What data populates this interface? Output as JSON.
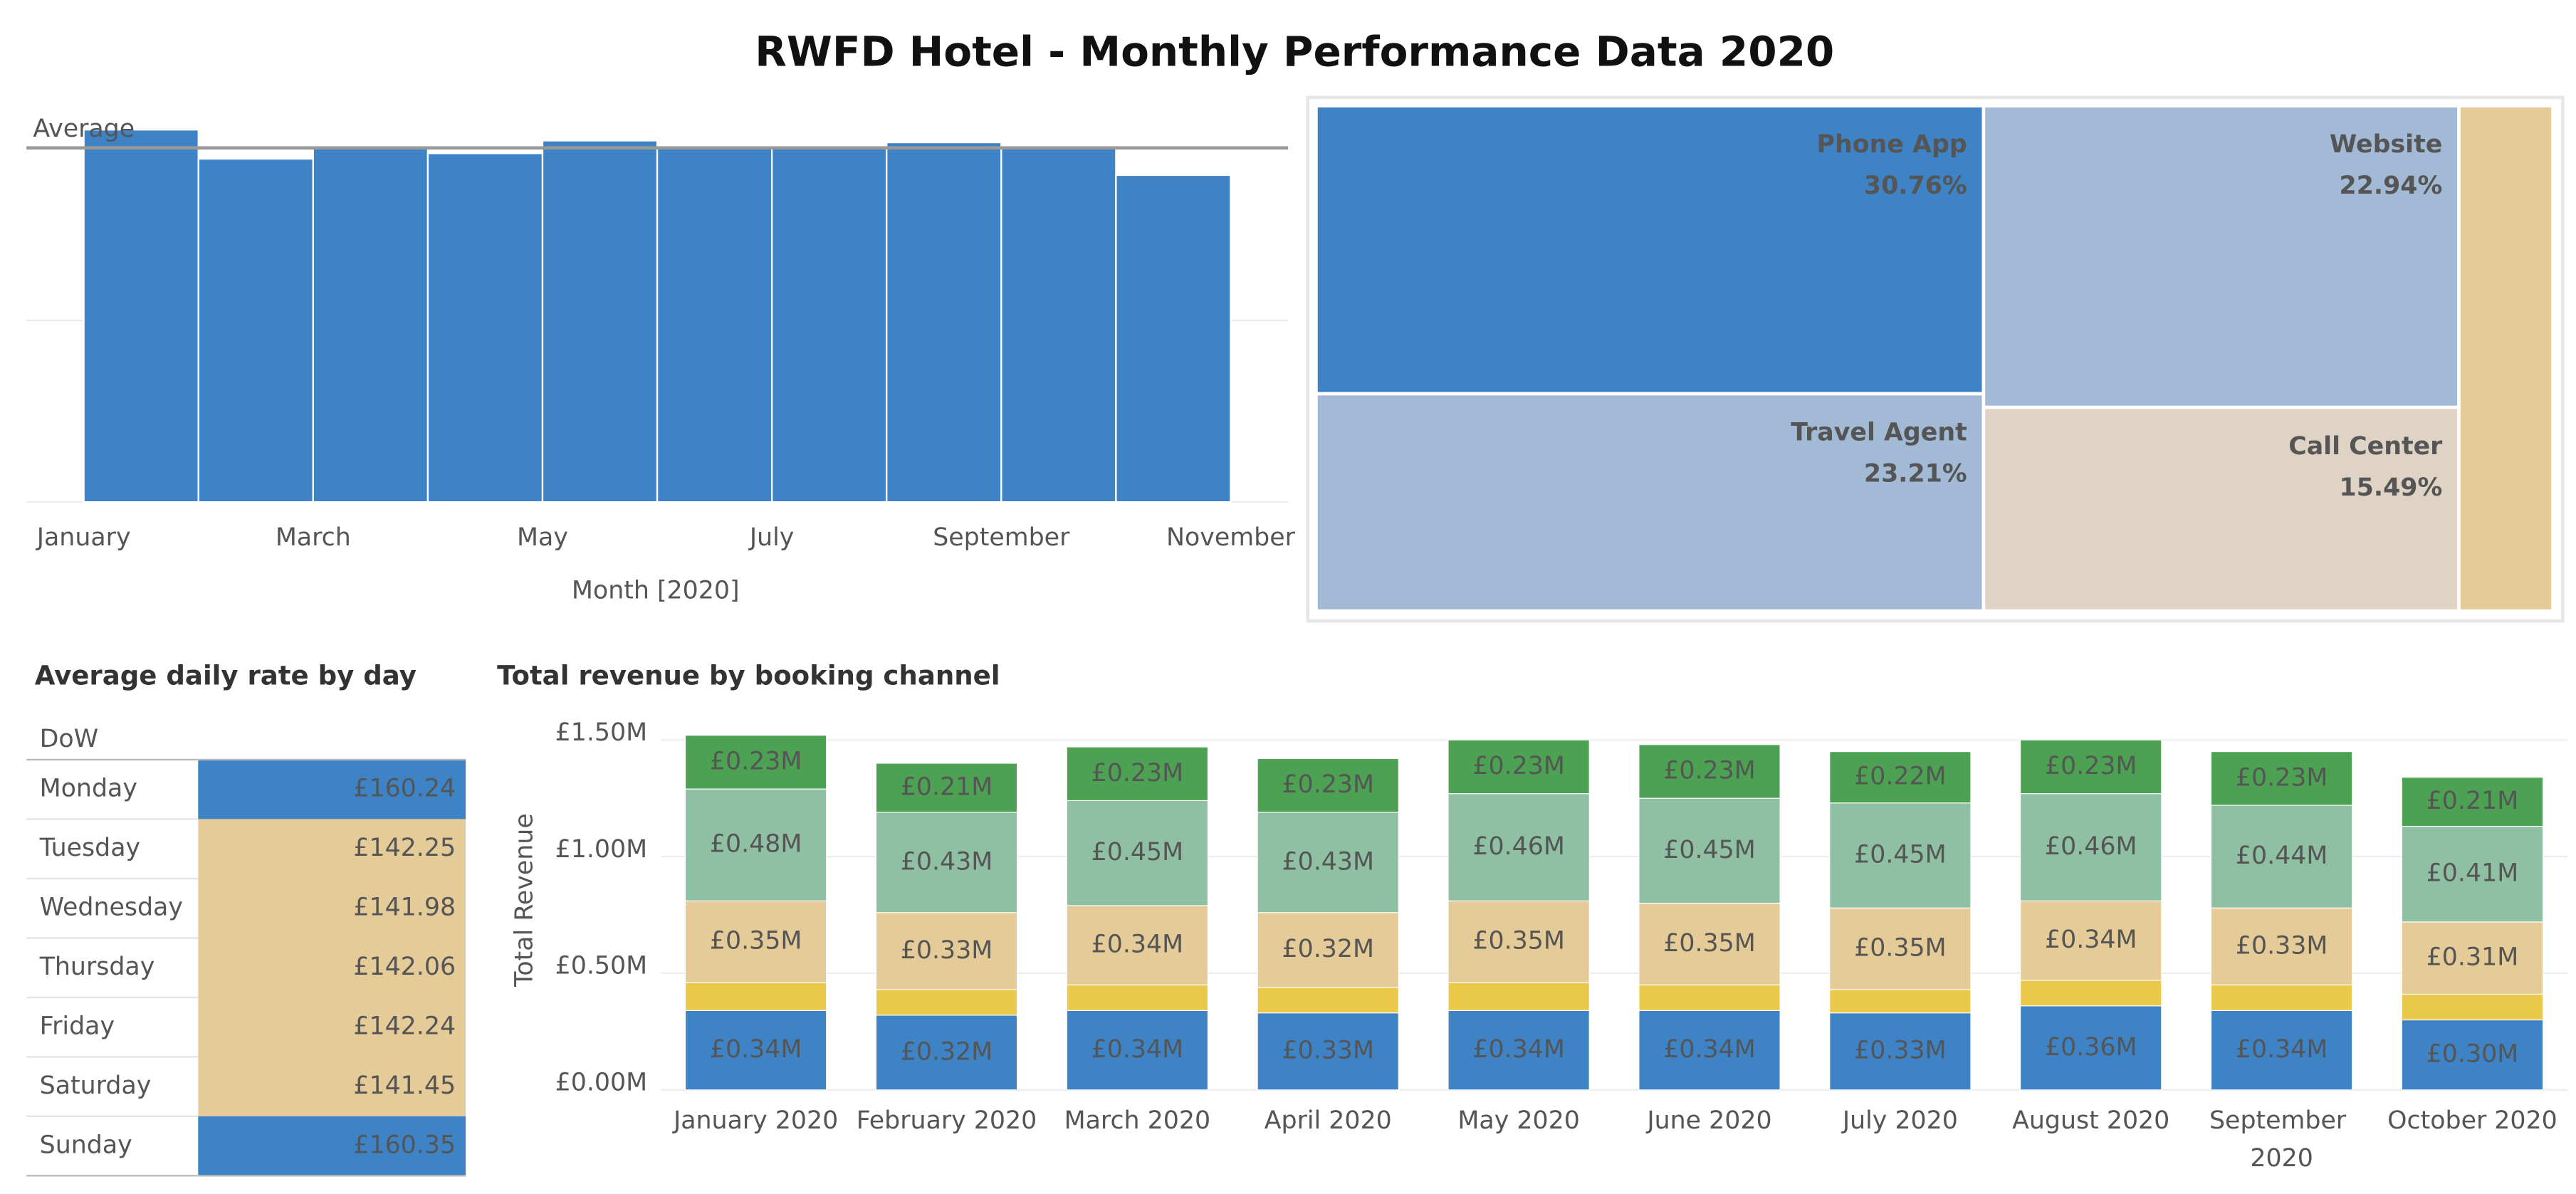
{
  "title": "RWFD Hotel - Monthly Performance Data 2020",
  "chart_data": [
    {
      "type": "bar",
      "x": [
        1,
        2,
        3,
        4,
        5,
        6,
        7,
        8,
        9,
        10
      ],
      "values": [
        2.05,
        1.89,
        1.96,
        1.92,
        1.99,
        1.96,
        1.96,
        1.98,
        1.95,
        1.8
      ],
      "color": "#3d83c6",
      "xlim": [
        0.5,
        11.5
      ],
      "xticks": [
        {
          "value": 1,
          "label": "January"
        },
        {
          "value": 3,
          "label": "March"
        },
        {
          "value": 5,
          "label": "May"
        },
        {
          "value": 7,
          "label": "July"
        },
        {
          "value": 9,
          "label": "September"
        },
        {
          "value": 11,
          "label": "November"
        }
      ],
      "ylim": [
        0,
        2.2
      ],
      "yticks": [
        0,
        1
      ],
      "grid": true,
      "xlabel": "Month [2020]",
      "reference_line": {
        "label": "Average",
        "value": 1.95
      }
    },
    {
      "type": "treemap",
      "categories": [
        "Phone App",
        "Travel Agent",
        "Website",
        "Call Center",
        null
      ],
      "values": [
        30.76,
        23.21,
        22.94,
        15.49,
        7.6
      ],
      "value_labels": [
        "30.76%",
        "23.21%",
        "22.94%",
        "15.49%",
        null
      ],
      "colors": [
        "#3d83c6",
        "#a2bad5",
        "#a2bad5",
        "#ded3c4",
        "#e4cb98"
      ]
    },
    {
      "type": "table",
      "title": "Average daily rate by day",
      "header": "DoW",
      "categories": [
        "Monday",
        "Tuesday",
        "Wednesday",
        "Thursday",
        "Friday",
        "Saturday",
        "Sunday"
      ],
      "values": [
        160.24,
        142.25,
        141.98,
        142.06,
        142.24,
        141.45,
        160.35
      ],
      "value_labels": [
        "£160.24",
        "£142.25",
        "£141.98",
        "£142.06",
        "£142.24",
        "£141.45",
        "£160.35"
      ],
      "colors": [
        "#3d83c6",
        "#e4cb98",
        "#e4cb98",
        "#e4cb98",
        "#e4cb98",
        "#e4cb98",
        "#3d83c6"
      ]
    },
    {
      "type": "stacked_bar",
      "title": "Total revenue by booking channel",
      "ylabel": "Total Revenue",
      "categories": [
        "January 2020",
        "February 2020",
        "March 2020",
        "April 2020",
        "May 2020",
        "June 2020",
        "July 2020",
        "August 2020",
        "September 2020",
        "October 2020"
      ],
      "ylim": [
        0,
        1.55
      ],
      "yticks": [
        {
          "value": 0,
          "label": "£0.00M"
        },
        {
          "value": 0.5,
          "label": "£0.50M"
        },
        {
          "value": 1,
          "label": "£1.00M"
        },
        {
          "value": 1.5,
          "label": "£1.50M"
        }
      ],
      "grid": true,
      "series": [
        {
          "color": "#3d83c6",
          "label_color": "#a9cdf0",
          "values": [
            0.34,
            0.32,
            0.34,
            0.33,
            0.34,
            0.34,
            0.33,
            0.36,
            0.34,
            0.3
          ],
          "value_labels": [
            "£0.34M",
            "£0.32M",
            "£0.34M",
            "£0.33M",
            "£0.34M",
            "£0.34M",
            "£0.33M",
            "£0.36M",
            "£0.34M",
            "£0.30M"
          ]
        },
        {
          "color": "#e9c84a",
          "values": [
            0.12,
            0.11,
            0.11,
            0.11,
            0.12,
            0.11,
            0.1,
            0.11,
            0.11,
            0.11
          ]
        },
        {
          "color": "#e4cb98",
          "label_color": "#b09a70",
          "values": [
            0.35,
            0.33,
            0.34,
            0.32,
            0.35,
            0.35,
            0.35,
            0.34,
            0.33,
            0.31
          ],
          "value_labels": [
            "£0.35M",
            "£0.33M",
            "£0.34M",
            "£0.32M",
            "£0.35M",
            "£0.35M",
            "£0.35M",
            "£0.34M",
            "£0.33M",
            "£0.31M"
          ]
        },
        {
          "color": "#8fc0a4",
          "label_color": "#5f8a72",
          "values": [
            0.48,
            0.43,
            0.45,
            0.43,
            0.46,
            0.45,
            0.45,
            0.46,
            0.44,
            0.41
          ],
          "value_labels": [
            "£0.48M",
            "£0.43M",
            "£0.45M",
            "£0.43M",
            "£0.46M",
            "£0.45M",
            "£0.45M",
            "£0.46M",
            "£0.44M",
            "£0.41M"
          ]
        },
        {
          "color": "#4da153",
          "label_color": "#a6d6a6",
          "values": [
            0.23,
            0.21,
            0.23,
            0.23,
            0.23,
            0.23,
            0.22,
            0.23,
            0.23,
            0.21
          ],
          "value_labels": [
            "£0.23M",
            "£0.21M",
            "£0.23M",
            "£0.23M",
            "£0.23M",
            "£0.23M",
            "£0.22M",
            "£0.23M",
            "£0.23M",
            "£0.21M"
          ]
        }
      ]
    }
  ]
}
